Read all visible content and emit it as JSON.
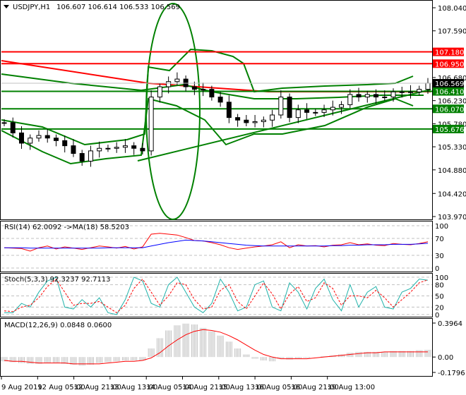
{
  "header": {
    "symbol": "USDJPY,H1",
    "ohlc": "106.607 106.614 106.533 106.569"
  },
  "colors": {
    "bull": "#000000",
    "bear": "#000000",
    "support": "#008000",
    "resistance": "#ff0000",
    "rsi": "#ff0000",
    "rsi_ma": "#0000ff",
    "stoch_main": "#20b2aa",
    "stoch_signal": "#ff0000",
    "macd_hist": "#c0c0c0",
    "macd_signal": "#ff0000",
    "current": "#000000"
  },
  "chart_data": [
    {
      "type": "candlestick",
      "title": "USDJPY,H1",
      "ylim": [
        103.97,
        108.04
      ],
      "y_ticks": [
        "108.040",
        "107.590",
        "106.680",
        "106.230",
        "105.780",
        "105.330",
        "104.880",
        "104.420",
        "103.970"
      ],
      "x_ticks": [
        "9 Aug 2019",
        "12 Aug 05:00",
        "12 Aug 21:00",
        "13 Aug 13:00",
        "14 Aug 05:00",
        "14 Aug 21:00",
        "15 Aug 13:00",
        "16 Aug 05:00",
        "16 Aug 21:00",
        "19 Aug 13:00"
      ],
      "closes": [
        105.8,
        105.6,
        105.4,
        105.5,
        105.55,
        105.5,
        105.45,
        105.35,
        105.2,
        105.05,
        105.25,
        105.3,
        105.3,
        105.32,
        105.35,
        105.3,
        105.25,
        106.3,
        106.5,
        106.6,
        106.65,
        106.5,
        106.45,
        106.45,
        106.3,
        106.2,
        105.9,
        105.85,
        105.8,
        105.82,
        105.85,
        105.95,
        106.3,
        105.9,
        106.05,
        106.0,
        106.0,
        106.05,
        106.1,
        106.15,
        106.35,
        106.3,
        106.35,
        106.3,
        106.3,
        106.4,
        106.4,
        106.4,
        106.45,
        106.57
      ],
      "levels": [
        {
          "label": "107.180",
          "value": 107.18,
          "kind": "resistance"
        },
        {
          "label": "106.950",
          "value": 106.95,
          "kind": "resistance"
        },
        {
          "label": "106.410",
          "value": 106.41,
          "kind": "support"
        },
        {
          "label": "106.070",
          "value": 106.07,
          "kind": "support"
        },
        {
          "label": "105.676",
          "value": 105.676,
          "kind": "support"
        }
      ],
      "current_price": "106.569"
    },
    {
      "type": "line",
      "title": "RSI(14) 62.0092  ->MA(18) 58.5203",
      "ylim": [
        0,
        100
      ],
      "y_ticks": [
        "100",
        "70",
        "30",
        "0"
      ],
      "series": [
        {
          "values": [
            48,
            47,
            46,
            40,
            48,
            52,
            45,
            50,
            47,
            44,
            48,
            52,
            50,
            47,
            51,
            45,
            50,
            80,
            82,
            80,
            78,
            72,
            65,
            64,
            60,
            55,
            48,
            44,
            47,
            50,
            52,
            55,
            62,
            48,
            55,
            52,
            53,
            50,
            54,
            55,
            60,
            55,
            57,
            54,
            53,
            58,
            56,
            55,
            58,
            62
          ]
        },
        {
          "values": [
            48,
            48,
            48,
            47,
            47,
            47,
            47,
            47,
            47,
            47,
            47,
            47,
            48,
            48,
            48,
            48,
            48,
            52,
            56,
            60,
            63,
            66,
            65,
            64,
            62,
            60,
            58,
            56,
            54,
            53,
            52,
            52,
            52,
            52,
            52,
            52,
            52,
            52,
            53,
            53,
            54,
            54,
            55,
            55,
            55,
            56,
            56,
            56,
            57,
            58.5
          ]
        }
      ]
    },
    {
      "type": "line",
      "title": "Stoch(5,3,3) 92.3237 92.7113",
      "ylim": [
        0,
        100
      ],
      "y_ticks": [
        "100",
        "80",
        "50",
        "20",
        "0"
      ],
      "series": [
        {
          "values": [
            5,
            5,
            30,
            20,
            60,
            90,
            100,
            20,
            15,
            40,
            20,
            45,
            5,
            0,
            40,
            100,
            90,
            30,
            20,
            80,
            100,
            60,
            20,
            5,
            30,
            95,
            60,
            10,
            20,
            80,
            90,
            20,
            10,
            85,
            60,
            15,
            70,
            95,
            40,
            10,
            80,
            20,
            60,
            75,
            20,
            15,
            60,
            70,
            95,
            92
          ]
        },
        {
          "values": [
            10,
            8,
            20,
            25,
            45,
            75,
            95,
            60,
            25,
            30,
            30,
            35,
            20,
            5,
            25,
            70,
            95,
            60,
            25,
            50,
            85,
            80,
            40,
            15,
            20,
            65,
            80,
            35,
            15,
            50,
            85,
            55,
            15,
            55,
            75,
            35,
            45,
            85,
            70,
            25,
            50,
            50,
            45,
            65,
            45,
            20,
            40,
            60,
            85,
            93
          ]
        }
      ]
    },
    {
      "type": "bar",
      "title": "MACD(12,26,9) 0.0848 0.0600",
      "ylim": [
        -0.1796,
        0.3964
      ],
      "y_ticks": [
        "0.3964",
        "0.00",
        "-0.1796"
      ],
      "values": [
        -0.05,
        -0.06,
        -0.07,
        -0.08,
        -0.08,
        -0.07,
        -0.07,
        -0.08,
        -0.09,
        -0.1,
        -0.09,
        -0.07,
        -0.06,
        -0.05,
        -0.04,
        -0.04,
        -0.04,
        0.1,
        0.22,
        0.31,
        0.37,
        0.39,
        0.38,
        0.34,
        0.3,
        0.25,
        0.18,
        0.1,
        0.03,
        -0.02,
        -0.04,
        -0.05,
        -0.02,
        -0.03,
        -0.02,
        -0.01,
        0.0,
        0.01,
        0.02,
        0.03,
        0.05,
        0.06,
        0.06,
        0.06,
        0.06,
        0.07,
        0.07,
        0.07,
        0.08,
        0.085
      ],
      "signal": [
        -0.04,
        -0.05,
        -0.05,
        -0.06,
        -0.07,
        -0.07,
        -0.07,
        -0.07,
        -0.08,
        -0.08,
        -0.08,
        -0.08,
        -0.07,
        -0.06,
        -0.05,
        -0.05,
        -0.04,
        -0.01,
        0.05,
        0.13,
        0.2,
        0.26,
        0.3,
        0.32,
        0.31,
        0.29,
        0.25,
        0.2,
        0.14,
        0.08,
        0.03,
        0.0,
        -0.02,
        -0.02,
        -0.02,
        -0.02,
        -0.01,
        0.0,
        0.01,
        0.02,
        0.03,
        0.04,
        0.05,
        0.05,
        0.06,
        0.06,
        0.06,
        0.06,
        0.06,
        0.06
      ]
    }
  ]
}
